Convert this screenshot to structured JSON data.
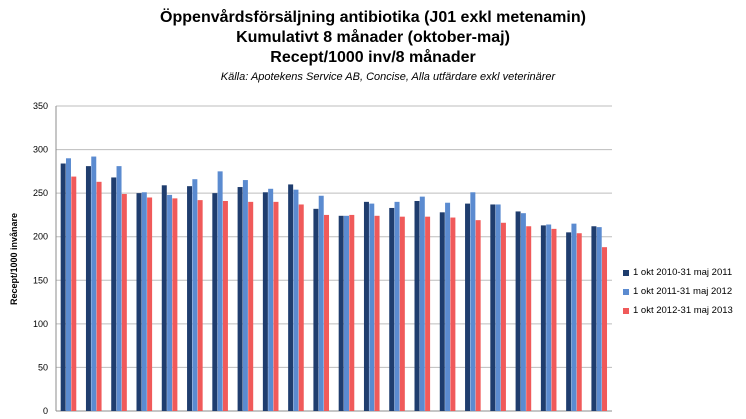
{
  "chart_data": {
    "type": "bar",
    "title": "Öppenvårdsförsäljning antibiotika (J01 exkl metenamin)",
    "subtitle": "Kumulativt 8 månader (oktober-maj)",
    "subtitle2": "Recept/1000 inv/8 månader",
    "source": "Källa: Apotekens Service AB, Concise, Alla utfärdare exkl veterinärer",
    "xlabel": "",
    "ylabel": "Recept/1000 invånare",
    "ylim": [
      0,
      350
    ],
    "yticks": [
      0,
      50,
      100,
      150,
      200,
      250,
      300,
      350
    ],
    "grid": true,
    "legend_position": "right",
    "categories": [
      "",
      "",
      "",
      "",
      "",
      "",
      "",
      "",
      "",
      "",
      "",
      "",
      "",
      "",
      "",
      "",
      "",
      "",
      "",
      "",
      "",
      ""
    ],
    "series": [
      {
        "name": "1 okt 2010-31 maj 2011",
        "color": "#1f3d6e",
        "values": [
          284,
          281,
          268,
          250,
          259,
          258,
          250,
          257,
          251,
          260,
          232,
          224,
          240,
          233,
          241,
          228,
          238,
          237,
          229,
          213,
          205,
          212
        ]
      },
      {
        "name": "1 okt 2011-31 maj 2012",
        "color": "#5b8bd0",
        "values": [
          290,
          292,
          281,
          251,
          248,
          266,
          275,
          265,
          255,
          254,
          247,
          224,
          238,
          240,
          246,
          239,
          251,
          237,
          227,
          214,
          215,
          211
        ]
      },
      {
        "name": "1 okt 2012-31 maj 2013",
        "color": "#f05a5a",
        "values": [
          269,
          263,
          249,
          245,
          244,
          242,
          241,
          240,
          240,
          237,
          225,
          225,
          224,
          223,
          223,
          222,
          219,
          216,
          212,
          209,
          204,
          188
        ]
      }
    ]
  }
}
